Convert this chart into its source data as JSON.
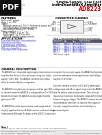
{
  "title_line1": "Single-Supply, Low Cost",
  "title_line2": "Instrumentation Amplifier",
  "title_line3": "AD8223",
  "pdf_label": "PDF",
  "bg_color": "#ffffff",
  "header_bg": "#111111",
  "header_text_color": "#ffffff",
  "title_color": "#000000",
  "ad_title_color": "#cc0000",
  "features_title": "FEATURES",
  "applications_title": "APPLICATIONS",
  "connection_title": "CONNECTION DIAGRAM",
  "general_desc_title": "GENERAL DESCRIPTION",
  "feat_lines": [
    "Rail-to-rail* output",
    "Gain: 1 to 1000",
    "Supply:",
    "  Software range to 5 V/3.3 V Reference output and",
    "  100 nA low-level shutdown current",
    "  100 mOhm Efficiency & 71 MHz",
    "Power supplies:",
    "  Single supply: 2.5V to 12V",
    "  Dual supply: ±1.35V to ±6V",
    "  1000 µA standby supply current"
  ],
  "app_lines": [
    "Low power medical instrumentation",
    "Transducer interface",
    "Thermocouple amplifiers",
    "Industrial process controls",
    "Difference amplifiers",
    "Low power data acquisition"
  ],
  "table_title": "Table 2. Instrumentation Amplifiers for Schematic",
  "table_headers": [
    "Component",
    "Min",
    "Gain",
    "High Voltage\nADR421"
  ],
  "table_rows": [
    [
      "AD8221",
      "AD8222",
      "AD8224",
      "AD8229"
    ],
    [
      "AD8225",
      "AD8223",
      "AD8224",
      "AD8225"
    ],
    [
      "AD8221",
      "AD8221",
      "AD8221",
      "AD8230"
    ],
    [
      "AD8221",
      "AD8221",
      "AD8221",
      "AD8221"
    ]
  ],
  "pin_labels_left": [
    "-IN 1",
    "+IN 2",
    "RG 3",
    "RG 4"
  ],
  "pin_labels_right": [
    "8 VS+",
    "7 OUTPUT",
    "6 REF",
    "5 RG"
  ],
  "fig_caption": "Figure 1. 8-Lead SOIC (R-8) and 8-Lead MSOP (RM-8) Packages",
  "footer_left": "One Technology Way, P.O. Box 9106, Norwood, MA 02062-9106, U.S.A.",
  "footer_tel": "Tel: 781.329.4700    www.analog.com",
  "footer_right": "©2006 Analog Devices, Inc. All rights reserved.",
  "note": "Note 1",
  "note2": "*Protected by U.S. Patent Numbers 5,075,634 and 5,262,699. Other patents pending."
}
